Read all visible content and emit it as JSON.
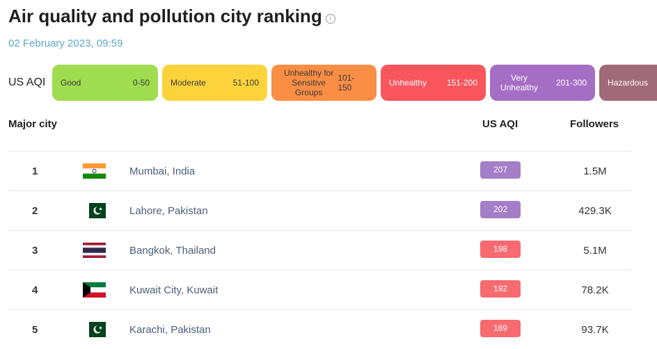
{
  "page": {
    "title": "Air quality and pollution city ranking",
    "info_symbol": "i",
    "date": "02 February 2023, 09:59"
  },
  "legend": {
    "label": "US AQI",
    "items": [
      {
        "name": "Good",
        "range": "0-50",
        "color": "#9fdc4f"
      },
      {
        "name": "Moderate",
        "range": "51-100",
        "color": "#fdd33b"
      },
      {
        "name": "Unhealthy for Sensitive Groups",
        "range": "101-150",
        "color": "#fa8e44"
      },
      {
        "name": "Unhealthy",
        "range": "151-200",
        "color": "#f8555d"
      },
      {
        "name": "Very Unhealthy",
        "range": "201-300",
        "color": "#a46ec5"
      },
      {
        "name": "Hazardous",
        "range": "",
        "color": "#a06a7a"
      }
    ]
  },
  "table": {
    "headers": {
      "city": "Major city",
      "aqi": "US AQI",
      "followers": "Followers"
    },
    "rows": [
      {
        "rank": "1",
        "flag": "india-flag",
        "city": "Mumbai, India",
        "aqi": "207",
        "aqi_color": "#a47ec6",
        "followers": "1.5M"
      },
      {
        "rank": "2",
        "flag": "pakistan-flag",
        "city": "Lahore, Pakistan",
        "aqi": "202",
        "aqi_color": "#a47ec6",
        "followers": "429.3K"
      },
      {
        "rank": "3",
        "flag": "thailand-flag",
        "city": "Bangkok, Thailand",
        "aqi": "198",
        "aqi_color": "#f76a70",
        "followers": "5.1M"
      },
      {
        "rank": "4",
        "flag": "kuwait-flag",
        "city": "Kuwait City, Kuwait",
        "aqi": "192",
        "aqi_color": "#f76a70",
        "followers": "78.2K"
      },
      {
        "rank": "5",
        "flag": "pakistan-flag",
        "city": "Karachi, Pakistan",
        "aqi": "189",
        "aqi_color": "#f76a70",
        "followers": "93.7K"
      }
    ]
  }
}
